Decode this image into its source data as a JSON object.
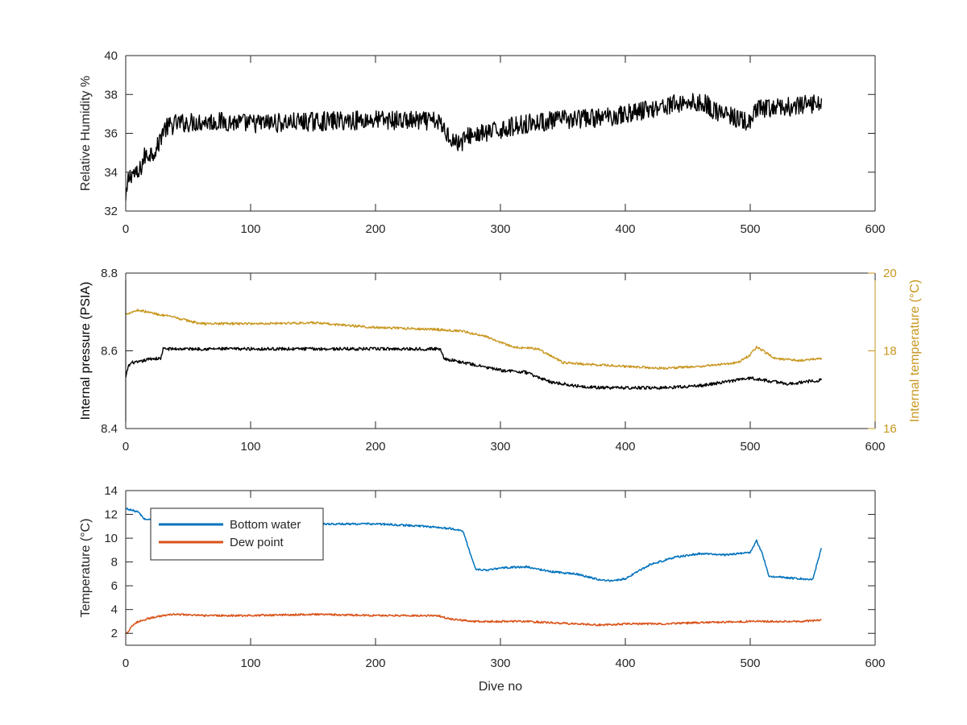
{
  "colors": {
    "humidity": "#000000",
    "pressure": "#000000",
    "internal_temperature": "#C8961E",
    "bottom_water": "#0072BD",
    "dew_point": "#D95319",
    "axis": "#262626"
  },
  "chart_data": [
    {
      "type": "line",
      "xlabel": "",
      "ylabel": "Relative Humidity %",
      "xlim": [
        0,
        600
      ],
      "ylim": [
        32,
        40
      ],
      "xticks": [
        "0",
        "100",
        "200",
        "300",
        "400",
        "500",
        "600"
      ],
      "yticks": [
        "32",
        "34",
        "36",
        "38",
        "40"
      ],
      "grid": false,
      "series": [
        {
          "color_key": "humidity",
          "noise": 0.5,
          "x": [
            0,
            2,
            5,
            10,
            15,
            20,
            25,
            30,
            40,
            60,
            80,
            100,
            150,
            200,
            250,
            255,
            260,
            265,
            270,
            275,
            290,
            300,
            320,
            350,
            380,
            400,
            430,
            450,
            465,
            470,
            500,
            505,
            520,
            540,
            557
          ],
          "y": [
            32.4,
            33.6,
            34.0,
            33.8,
            34.8,
            35.0,
            35.2,
            36.2,
            36.5,
            36.6,
            36.6,
            36.5,
            36.6,
            36.7,
            36.6,
            36.2,
            35.8,
            35.5,
            35.6,
            35.9,
            36.0,
            36.2,
            36.5,
            36.7,
            36.8,
            37.0,
            37.4,
            37.6,
            37.5,
            37.2,
            36.5,
            37.2,
            37.3,
            37.4,
            37.6
          ]
        }
      ]
    },
    {
      "type": "line",
      "xlabel": "",
      "ylabel": "Internal pressure (PSIA)",
      "ylabel_right": "Internal temperature (°C)",
      "xlim": [
        0,
        600
      ],
      "ylim": [
        8.4,
        8.8
      ],
      "ylim_right": [
        16,
        20
      ],
      "xticks": [
        "0",
        "100",
        "200",
        "300",
        "400",
        "500",
        "600"
      ],
      "yticks": [
        "8.4",
        "8.6",
        "8.8"
      ],
      "yticks_right": [
        "16",
        "18",
        "20"
      ],
      "grid": false,
      "series": [
        {
          "axis": "left",
          "color_key": "pressure",
          "noise": 0.004,
          "x": [
            0,
            2,
            5,
            10,
            20,
            28,
            30,
            100,
            200,
            252,
            255,
            270,
            300,
            320,
            340,
            360,
            380,
            400,
            430,
            460,
            500,
            530,
            557
          ],
          "y": [
            8.53,
            8.56,
            8.57,
            8.57,
            8.58,
            8.58,
            8.605,
            8.605,
            8.605,
            8.605,
            8.58,
            8.57,
            8.55,
            8.545,
            8.52,
            8.51,
            8.505,
            8.505,
            8.505,
            8.51,
            8.53,
            8.515,
            8.525
          ]
        },
        {
          "axis": "right",
          "color_key": "internal_temperature",
          "noise": 0.03,
          "x": [
            0,
            10,
            20,
            40,
            60,
            100,
            150,
            200,
            250,
            270,
            290,
            310,
            330,
            350,
            370,
            400,
            430,
            460,
            490,
            500,
            505,
            520,
            540,
            557
          ],
          "y": [
            18.95,
            19.05,
            18.98,
            18.85,
            18.7,
            18.7,
            18.72,
            18.6,
            18.55,
            18.5,
            18.35,
            18.1,
            18.05,
            17.7,
            17.65,
            17.6,
            17.55,
            17.6,
            17.7,
            17.9,
            18.1,
            17.8,
            17.75,
            17.8
          ]
        }
      ]
    },
    {
      "type": "line",
      "xlabel": "Dive no",
      "ylabel": "Temperature (°C)",
      "xlim": [
        0,
        600
      ],
      "ylim": [
        1,
        14
      ],
      "xticks": [
        "0",
        "100",
        "200",
        "300",
        "400",
        "500",
        "600"
      ],
      "yticks": [
        "2",
        "4",
        "6",
        "8",
        "10",
        "12",
        "14"
      ],
      "grid": false,
      "legend": "top-left",
      "series": [
        {
          "name": "Bottom water",
          "color_key": "bottom_water",
          "noise": 0.08,
          "x": [
            0,
            10,
            15,
            40,
            80,
            120,
            160,
            200,
            240,
            260,
            270,
            275,
            280,
            290,
            300,
            320,
            340,
            360,
            380,
            390,
            400,
            410,
            420,
            440,
            460,
            480,
            500,
            505,
            510,
            515,
            540,
            550,
            557
          ],
          "y": [
            12.5,
            12.2,
            11.6,
            11.4,
            11.3,
            11.2,
            11.2,
            11.2,
            11.0,
            10.8,
            10.6,
            9.0,
            7.4,
            7.3,
            7.5,
            7.6,
            7.2,
            7.0,
            6.5,
            6.4,
            6.6,
            7.2,
            7.8,
            8.4,
            8.7,
            8.6,
            8.8,
            9.8,
            8.6,
            6.8,
            6.6,
            6.5,
            9.2
          ]
        },
        {
          "name": "Dew point",
          "color_key": "dew_point",
          "noise": 0.08,
          "x": [
            0,
            2,
            5,
            10,
            20,
            30,
            40,
            60,
            100,
            150,
            200,
            250,
            260,
            280,
            300,
            320,
            340,
            360,
            380,
            400,
            430,
            460,
            500,
            520,
            540,
            557
          ],
          "y": [
            2.0,
            2.1,
            2.6,
            3.0,
            3.3,
            3.5,
            3.6,
            3.5,
            3.5,
            3.6,
            3.5,
            3.5,
            3.2,
            3.0,
            3.0,
            3.0,
            2.9,
            2.8,
            2.7,
            2.8,
            2.8,
            2.9,
            3.0,
            3.0,
            3.0,
            3.1
          ]
        }
      ]
    }
  ]
}
